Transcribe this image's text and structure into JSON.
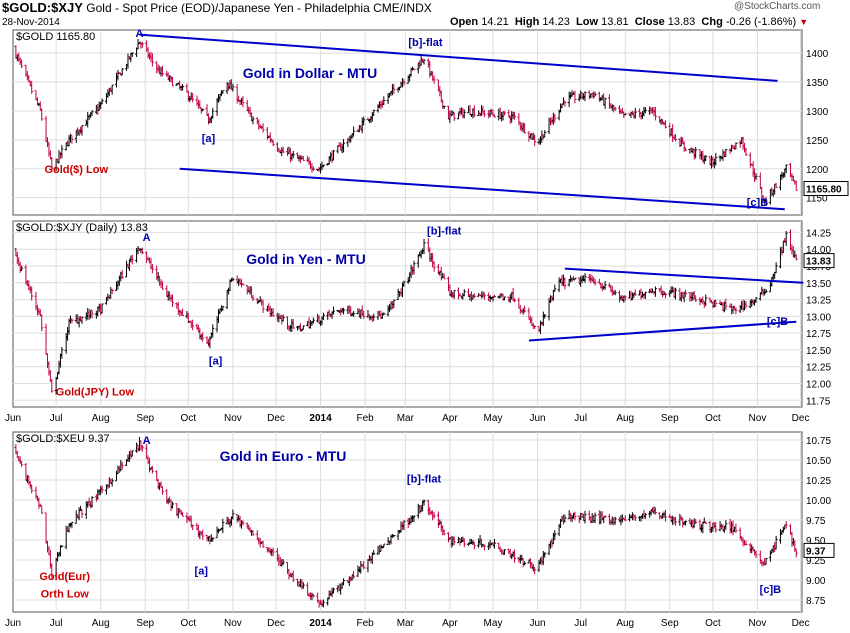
{
  "header": {
    "symbol": "$GOLD:$XJY",
    "description": "Gold - Spot Price (EOD)/Japanese Yen - Philadelphia CME/INDX",
    "date": "28-Nov-2014",
    "open_label": "Open",
    "open": "14.21",
    "high_label": "High",
    "high": "14.23",
    "low_label": "Low",
    "low": "13.81",
    "close_label": "Close",
    "close": "13.83",
    "chg_label": "Chg",
    "chg": "-0.26 (-1.86%)",
    "brand": "@StockCharts.com"
  },
  "colors": {
    "bar_up": "#000000",
    "bar_down": "#c0004a",
    "channel": "#0000cc",
    "wave_label": "#0000aa",
    "low_label": "#cc0000",
    "grid": "#dcdcdc",
    "last_price_box": "#000000"
  },
  "x_axis": {
    "months": [
      "Jun",
      "Jul",
      "Aug",
      "Sep",
      "Oct",
      "Nov",
      "Dec",
      "2014",
      "Feb",
      "Mar",
      "Apr",
      "May",
      "Jun",
      "Jul",
      "Aug",
      "Sep",
      "Oct",
      "Nov",
      "Dec"
    ]
  },
  "chart_data": [
    {
      "type": "ohlc",
      "legend": "$GOLD 1165.80",
      "title": "Gold in Dollar - MTU",
      "last_value": "1165.80",
      "ylim": [
        1120,
        1440
      ],
      "yticks": [
        1150,
        1200,
        1250,
        1300,
        1350,
        1400
      ],
      "x_start": "2013-06-01",
      "x_end": "2014-11-28",
      "series": [
        {
          "name": "GOLD",
          "anchors": [
            [
              "2013-06-01",
              1410
            ],
            [
              "2013-06-20",
              1300
            ],
            [
              "2013-06-28",
              1200
            ],
            [
              "2013-07-10",
              1250
            ],
            [
              "2013-08-01",
              1310
            ],
            [
              "2013-08-28",
              1420
            ],
            [
              "2013-09-10",
              1370
            ],
            [
              "2013-09-30",
              1330
            ],
            [
              "2013-10-15",
              1285
            ],
            [
              "2013-10-28",
              1350
            ],
            [
              "2013-11-15",
              1285
            ],
            [
              "2013-12-05",
              1230
            ],
            [
              "2013-12-31",
              1200
            ],
            [
              "2014-01-20",
              1250
            ],
            [
              "2014-02-15",
              1320
            ],
            [
              "2014-03-14",
              1392
            ],
            [
              "2014-03-31",
              1290
            ],
            [
              "2014-04-15",
              1300
            ],
            [
              "2014-05-15",
              1290
            ],
            [
              "2014-06-01",
              1245
            ],
            [
              "2014-06-20",
              1320
            ],
            [
              "2014-07-10",
              1330
            ],
            [
              "2014-07-31",
              1290
            ],
            [
              "2014-08-20",
              1300
            ],
            [
              "2014-09-10",
              1240
            ],
            [
              "2014-09-30",
              1210
            ],
            [
              "2014-10-21",
              1250
            ],
            [
              "2014-11-06",
              1142
            ],
            [
              "2014-11-21",
              1200
            ],
            [
              "2014-11-28",
              1166
            ]
          ]
        }
      ],
      "annotations": [
        {
          "text": "A",
          "date": "2013-08-28",
          "value": 1428,
          "color": "wave"
        },
        {
          "text": "[b]-flat",
          "date": "2014-03-15",
          "value": 1412,
          "color": "wave"
        },
        {
          "text": "[a]",
          "date": "2013-10-15",
          "value": 1246,
          "color": "wave"
        },
        {
          "text": "[c]B",
          "date": "2014-11-01",
          "value": 1136,
          "color": "wave"
        },
        {
          "text": "Gold($) Low",
          "date": "2013-07-15",
          "value": 1193,
          "color": "low"
        }
      ],
      "trendlines": [
        [
          [
            "2013-08-28",
            1432
          ],
          [
            "2014-11-15",
            1352
          ]
        ],
        [
          [
            "2013-09-25",
            1200
          ],
          [
            "2014-11-20",
            1130
          ]
        ]
      ]
    },
    {
      "type": "ohlc",
      "legend": "$GOLD:$XJY (Daily) 13.83",
      "title": "Gold in Yen - MTU",
      "last_value": "13.83",
      "ylim": [
        11.65,
        14.42
      ],
      "yticks": [
        11.75,
        12.0,
        12.25,
        12.5,
        12.75,
        13.0,
        13.25,
        13.5,
        13.75,
        14.0,
        14.25
      ],
      "x_start": "2013-06-01",
      "x_end": "2014-11-28",
      "series": [
        {
          "name": "GOLD:XJY",
          "anchors": [
            [
              "2013-06-01",
              14.0
            ],
            [
              "2013-06-20",
              13.0
            ],
            [
              "2013-06-28",
              11.85
            ],
            [
              "2013-07-10",
              12.9
            ],
            [
              "2013-08-01",
              13.1
            ],
            [
              "2013-08-28",
              14.05
            ],
            [
              "2013-09-15",
              13.35
            ],
            [
              "2013-10-15",
              12.6
            ],
            [
              "2013-11-01",
              13.6
            ],
            [
              "2013-11-25",
              13.1
            ],
            [
              "2013-12-15",
              12.8
            ],
            [
              "2014-01-15",
              13.1
            ],
            [
              "2014-02-15",
              13.0
            ],
            [
              "2014-03-01",
              13.5
            ],
            [
              "2014-03-14",
              14.05
            ],
            [
              "2014-04-01",
              13.35
            ],
            [
              "2014-04-15",
              13.3
            ],
            [
              "2014-05-15",
              13.3
            ],
            [
              "2014-06-01",
              12.75
            ],
            [
              "2014-06-15",
              13.5
            ],
            [
              "2014-07-10",
              13.55
            ],
            [
              "2014-07-31",
              13.25
            ],
            [
              "2014-08-20",
              13.4
            ],
            [
              "2014-09-15",
              13.3
            ],
            [
              "2014-10-15",
              13.1
            ],
            [
              "2014-11-01",
              13.25
            ],
            [
              "2014-11-10",
              13.5
            ],
            [
              "2014-11-21",
              14.2
            ],
            [
              "2014-11-28",
              13.83
            ]
          ]
        }
      ],
      "annotations": [
        {
          "text": "A",
          "date": "2013-09-02",
          "value": 14.12,
          "color": "wave"
        },
        {
          "text": "[b]-flat",
          "date": "2014-03-28",
          "value": 14.22,
          "color": "wave"
        },
        {
          "text": "[a]",
          "date": "2013-10-20",
          "value": 12.28,
          "color": "wave"
        },
        {
          "text": "[c]B",
          "date": "2014-11-15",
          "value": 12.87,
          "color": "wave"
        },
        {
          "text": "Gold(JPY) Low",
          "date": "2013-07-28",
          "value": 11.82,
          "color": "low"
        }
      ],
      "trendlines": [
        [
          [
            "2014-06-20",
            13.71
          ],
          [
            "2014-12-03",
            13.5
          ]
        ],
        [
          [
            "2014-05-26",
            12.64
          ],
          [
            "2014-11-28",
            12.92
          ]
        ]
      ]
    },
    {
      "type": "ohlc",
      "legend": "$GOLD:$XEU 9.37",
      "title": "Gold in Euro - MTU",
      "last_value": "9.37",
      "ylim": [
        8.6,
        10.85
      ],
      "yticks": [
        8.75,
        9.0,
        9.25,
        9.5,
        9.75,
        10.0,
        10.25,
        10.5,
        10.75
      ],
      "x_start": "2013-06-01",
      "x_end": "2014-11-28",
      "series": [
        {
          "name": "GOLD:XEU",
          "anchors": [
            [
              "2013-06-01",
              10.65
            ],
            [
              "2013-06-20",
              9.9
            ],
            [
              "2013-06-28",
              9.1
            ],
            [
              "2013-07-10",
              9.7
            ],
            [
              "2013-08-01",
              10.1
            ],
            [
              "2013-08-28",
              10.7
            ],
            [
              "2013-09-15",
              10.0
            ],
            [
              "2013-10-15",
              9.5
            ],
            [
              "2013-11-01",
              9.8
            ],
            [
              "2013-11-25",
              9.4
            ],
            [
              "2013-12-15",
              9.0
            ],
            [
              "2014-01-01",
              8.7
            ],
            [
              "2014-02-01",
              9.2
            ],
            [
              "2014-03-14",
              9.95
            ],
            [
              "2014-04-01",
              9.5
            ],
            [
              "2014-05-01",
              9.45
            ],
            [
              "2014-06-01",
              9.15
            ],
            [
              "2014-06-20",
              9.8
            ],
            [
              "2014-07-31",
              9.75
            ],
            [
              "2014-08-20",
              9.85
            ],
            [
              "2014-09-15",
              9.7
            ],
            [
              "2014-10-15",
              9.65
            ],
            [
              "2014-11-06",
              9.2
            ],
            [
              "2014-11-21",
              9.7
            ],
            [
              "2014-11-28",
              9.37
            ]
          ]
        }
      ],
      "annotations": [
        {
          "text": "A",
          "date": "2013-09-02",
          "value": 10.7,
          "color": "wave"
        },
        {
          "text": "[b]-flat",
          "date": "2014-03-14",
          "value": 10.22,
          "color": "wave"
        },
        {
          "text": "[a]",
          "date": "2013-10-10",
          "value": 9.07,
          "color": "wave"
        },
        {
          "text": "[c]B",
          "date": "2014-11-10",
          "value": 8.84,
          "color": "wave"
        },
        {
          "text": "Gold(Eur)",
          "date": "2013-07-07",
          "value": 9.0,
          "color": "low"
        },
        {
          "text": "Orth Low",
          "date": "2013-07-07",
          "value": 8.78,
          "color": "low"
        }
      ],
      "trendlines": []
    }
  ]
}
